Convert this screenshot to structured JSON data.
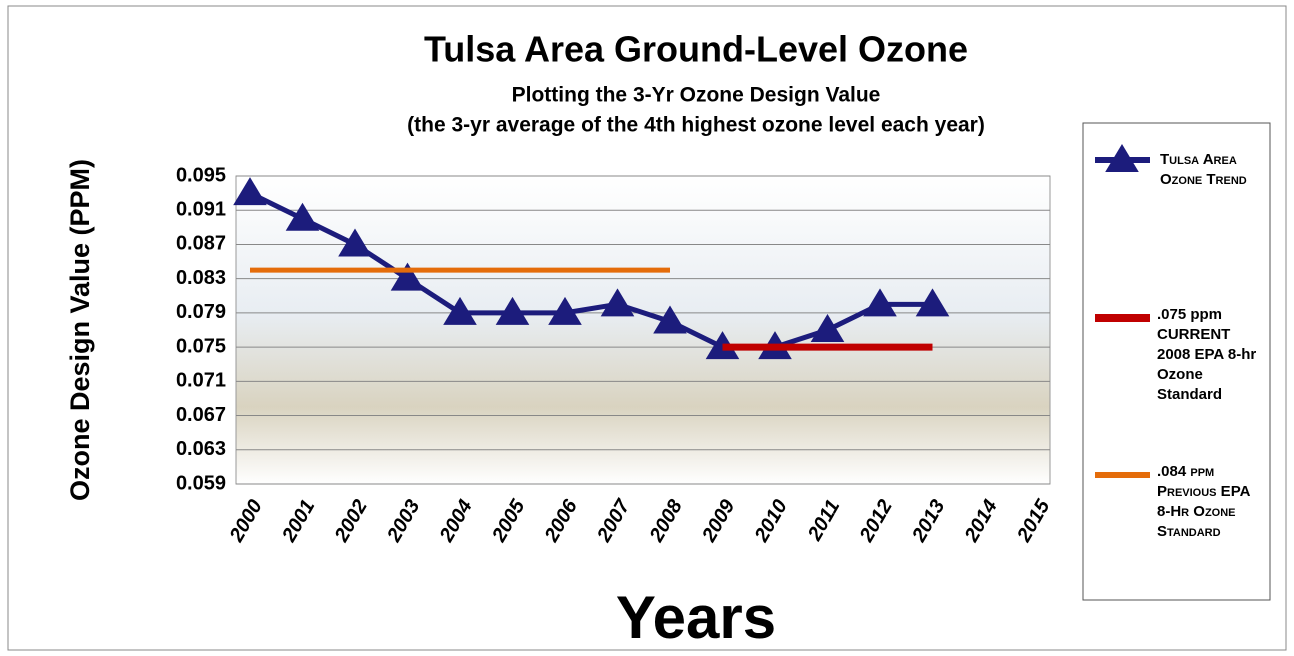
{
  "chart_data": {
    "type": "line",
    "title": "Tulsa Area Ground-Level Ozone",
    "subtitle": "Plotting the 3-Yr Ozone Design Value",
    "subtitle2": "(the 3-yr average of the 4th highest ozone level each year)",
    "y_label": "Ozone Design Value (PPM)",
    "x_label": "Years",
    "categories": [
      "2000",
      "2001",
      "2002",
      "2003",
      "2004",
      "2005",
      "2006",
      "2007",
      "2008",
      "2009",
      "2010",
      "2011",
      "2012",
      "2013",
      "2014",
      "2015"
    ],
    "series": [
      {
        "name": "Tulsa Area Ozone Trend",
        "color": "#1c1c7c",
        "marker": "triangle",
        "values": [
          0.093,
          0.09,
          0.087,
          0.083,
          0.079,
          0.079,
          0.079,
          0.08,
          0.078,
          0.075,
          0.075,
          0.077,
          0.08,
          0.08,
          null,
          null
        ]
      },
      {
        "name": ".075 ppm CURRENT 2008 EPA 8-hr Ozone Standard",
        "color": "#c00000",
        "values": [
          null,
          null,
          null,
          null,
          null,
          null,
          null,
          null,
          null,
          0.075,
          0.075,
          0.075,
          0.075,
          0.075,
          null,
          null
        ]
      },
      {
        "name": ".084 ppm Previous EPA 8-Hr Ozone Standard",
        "color": "#e46c0a",
        "values": [
          0.084,
          0.084,
          0.084,
          0.084,
          0.084,
          0.084,
          0.084,
          0.084,
          0.084,
          null,
          null,
          null,
          null,
          null,
          null,
          null
        ]
      }
    ],
    "ylim": [
      0.059,
      0.095
    ],
    "yticks": [
      0.095,
      0.091,
      0.087,
      0.083,
      0.079,
      0.075,
      0.071,
      0.067,
      0.063,
      0.059
    ],
    "grid": true
  }
}
